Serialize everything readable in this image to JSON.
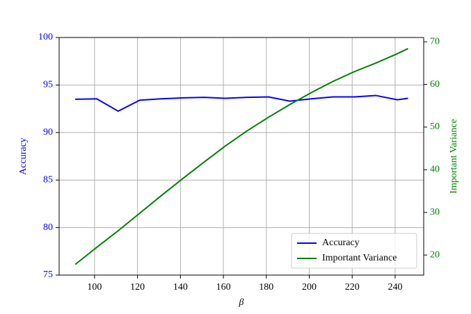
{
  "chart_data": {
    "type": "line",
    "x_label": "β",
    "y_label": "Accuracy",
    "y2_label": "Important Variance",
    "x": [
      91,
      101,
      111,
      121,
      131,
      141,
      151,
      161,
      171,
      181,
      191,
      201,
      211,
      221,
      231,
      241,
      246
    ],
    "series": [
      {
        "name": "Accuracy",
        "color": "#0000ff",
        "values": [
          93.5,
          93.55,
          92.25,
          93.4,
          93.55,
          93.65,
          93.7,
          93.6,
          93.7,
          93.75,
          93.3,
          93.55,
          93.75,
          93.75,
          93.9,
          93.45,
          93.6
        ]
      },
      {
        "name": "Important Variance",
        "color": "#008000",
        "axis": "y2",
        "values": [
          17.8,
          21.8,
          25.7,
          29.8,
          33.9,
          37.9,
          41.8,
          45.6,
          49.1,
          52.3,
          55.3,
          58.1,
          60.7,
          63.0,
          65.0,
          67.2,
          68.4
        ]
      }
    ],
    "xlim": [
      83.5,
      253.3
    ],
    "xticks": [
      100,
      120,
      140,
      160,
      180,
      200,
      220,
      240
    ],
    "ylim": [
      75,
      100
    ],
    "yticks": [
      75,
      80,
      85,
      90,
      95,
      100
    ],
    "y2lim": [
      15.3,
      71
    ],
    "y2ticks": [
      20,
      30,
      40,
      50,
      60,
      70
    ],
    "grid": true,
    "legend": "lower right"
  }
}
